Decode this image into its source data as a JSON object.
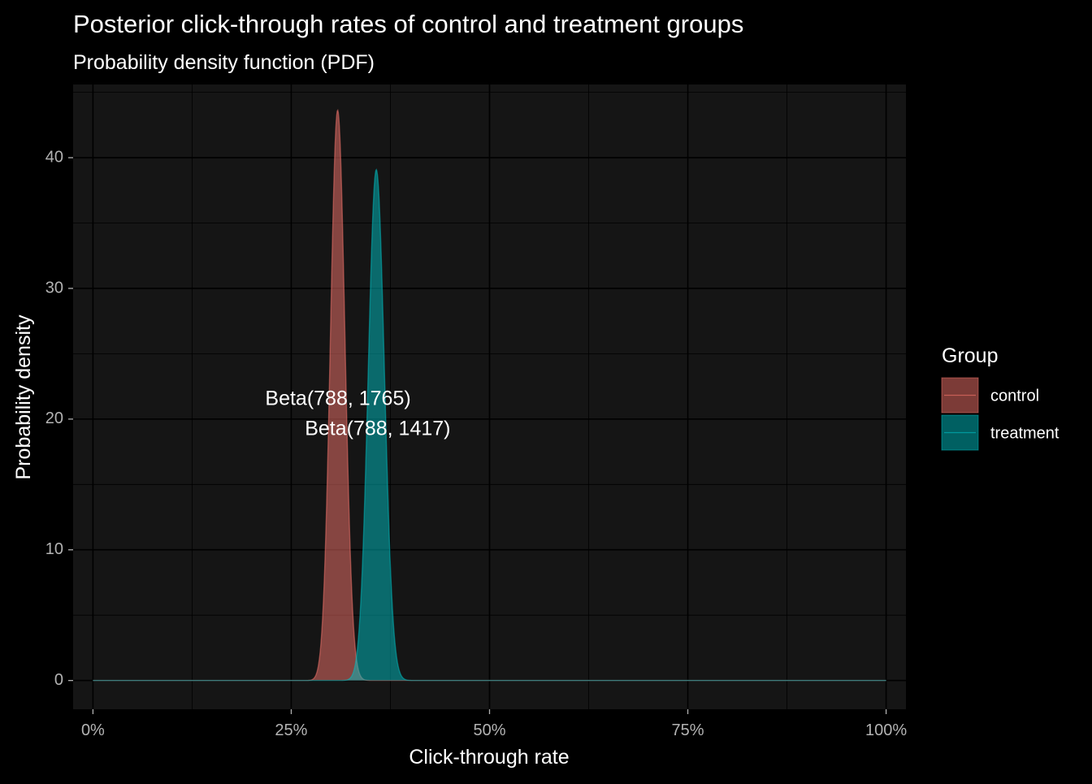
{
  "chart_data": {
    "type": "area",
    "title": "Posterior click-through rates of control and treatment groups",
    "subtitle": "Probability density function (PDF)",
    "xlabel": "Click-through rate",
    "ylabel": "Probability density",
    "xlim": [
      -0.025,
      1.025
    ],
    "ylim": [
      -2.2,
      45.6
    ],
    "x_ticks": [
      {
        "value": 0,
        "label": "0%"
      },
      {
        "value": 0.25,
        "label": "25%"
      },
      {
        "value": 0.5,
        "label": "50%"
      },
      {
        "value": 0.75,
        "label": "75%"
      },
      {
        "value": 1,
        "label": "100%"
      }
    ],
    "y_ticks": [
      {
        "value": 0,
        "label": "0"
      },
      {
        "value": 10,
        "label": "10"
      },
      {
        "value": 20,
        "label": "20"
      },
      {
        "value": 30,
        "label": "30"
      },
      {
        "value": 40,
        "label": "40"
      }
    ],
    "grid": true,
    "legend": {
      "title": "Group",
      "position": "right"
    },
    "series": [
      {
        "name": "control",
        "alpha": 788,
        "beta": 1765,
        "color": "#f8766d",
        "mode": 0.3087,
        "peak_density": 43.5
      },
      {
        "name": "treatment",
        "alpha": 788,
        "beta": 1417,
        "color": "#00bfc4",
        "mode": 0.3574,
        "peak_density": 39.0
      }
    ],
    "annotations": [
      {
        "text": "Beta(788, 1765)",
        "x": 0.309,
        "y": 21.5
      },
      {
        "text": "Beta(788, 1417)",
        "x": 0.359,
        "y": 19.2
      }
    ]
  }
}
